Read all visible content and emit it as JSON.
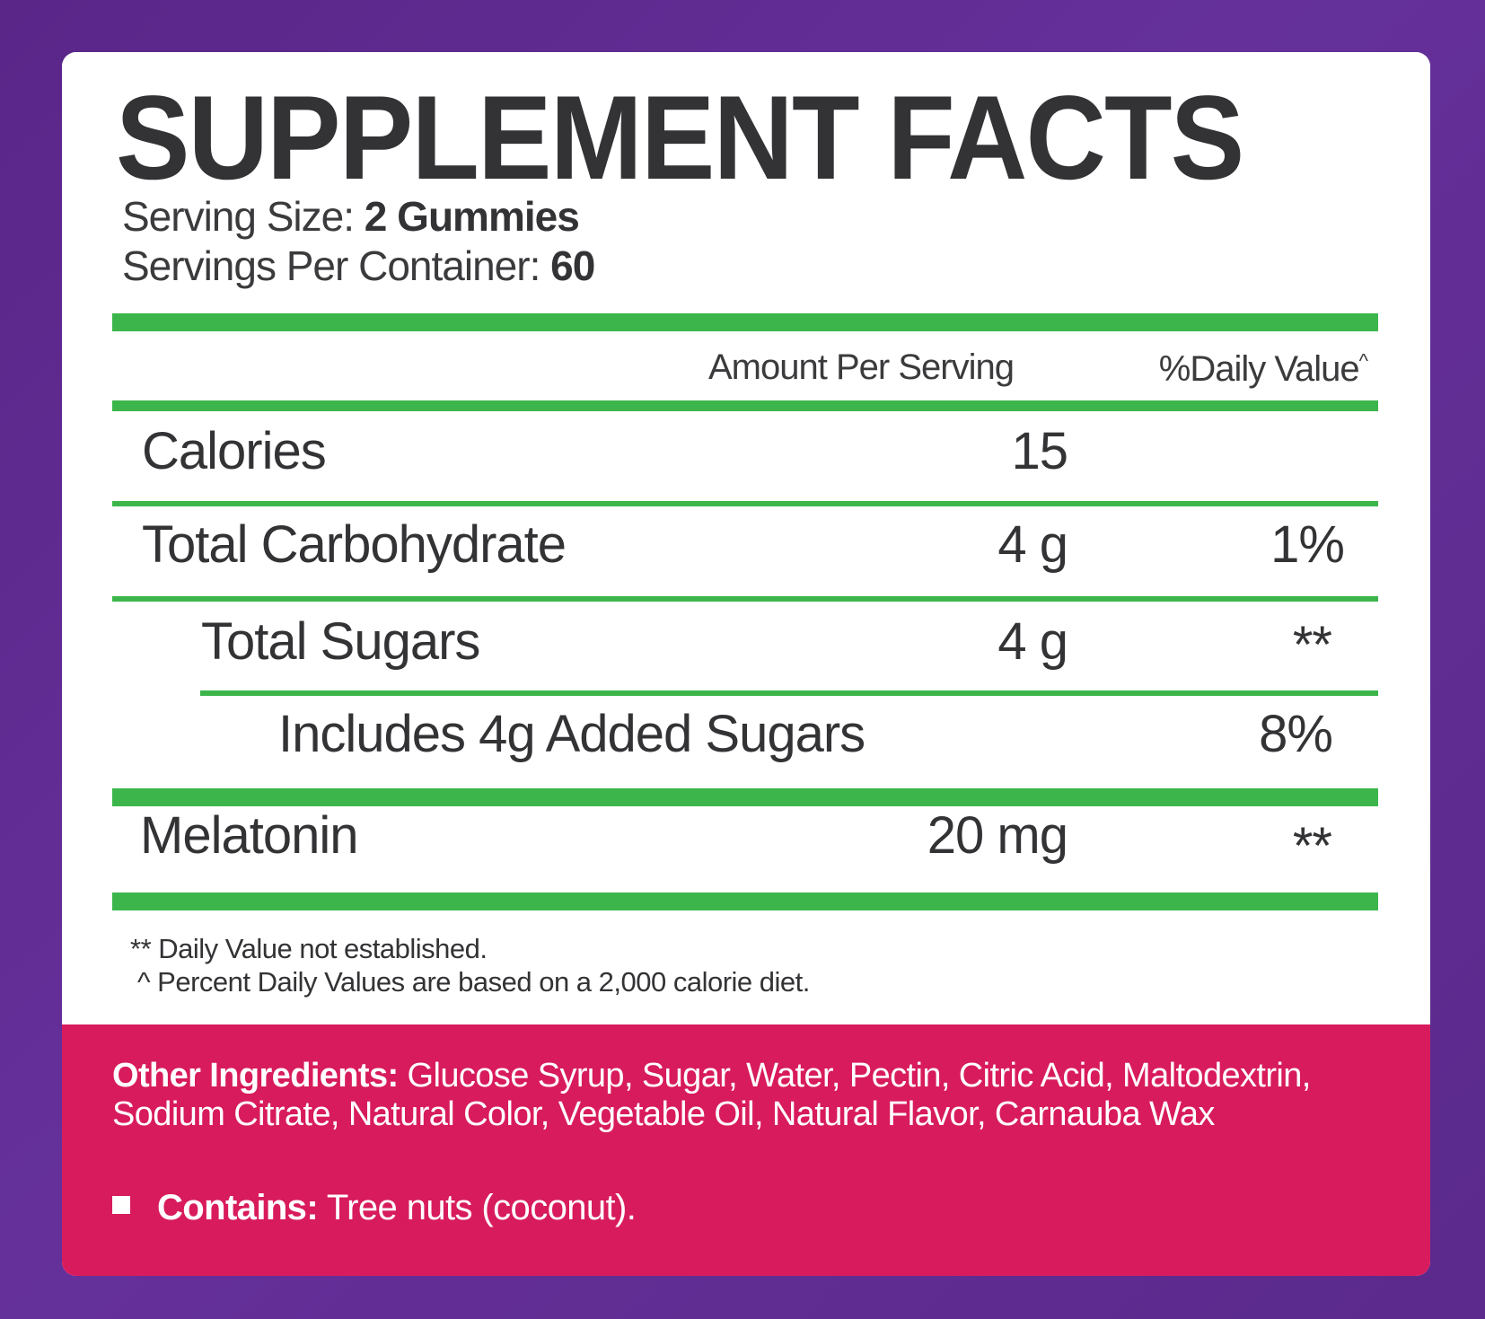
{
  "title": "SUPPLEMENT FACTS",
  "serving": {
    "size_label": "Serving Size:",
    "size_value": "2 Gummies",
    "per_container_label": "Servings Per Container:",
    "per_container_value": "60"
  },
  "columns": {
    "amount": "Amount Per Serving",
    "daily_value": "%Daily Value",
    "daily_value_mark": "^"
  },
  "rows": [
    {
      "label": "Calories",
      "amount": "15",
      "dv": ""
    },
    {
      "label": "Total Carbohydrate",
      "amount": "4 g",
      "dv": "1%"
    },
    {
      "label": "Total Sugars",
      "amount": "4 g",
      "dv": "**"
    },
    {
      "label": "Includes 4g Added Sugars",
      "amount": "",
      "dv": "8%"
    },
    {
      "label": "Melatonin",
      "amount": "20 mg",
      "dv": "**"
    }
  ],
  "footnotes": [
    "** Daily Value not established.",
    "^ Percent Daily Values are based on a 2,000 calorie diet."
  ],
  "other_ingredients": {
    "label": "Other Ingredients:",
    "text": " Glucose Syrup, Sugar, Water, Pectin, Citric Acid, Maltodextrin, Sodium Citrate, Natural Color, Vegetable Oil, Natural Flavor, Carnauba Wax"
  },
  "contains": {
    "label": "Contains:",
    "text": " Tree nuts (coconut)."
  },
  "colors": {
    "background": "#5a2688",
    "panel": "#ffffff",
    "accent_green": "#3cb64b",
    "ingredients_band": "#d81b5c",
    "text": "#333235"
  }
}
